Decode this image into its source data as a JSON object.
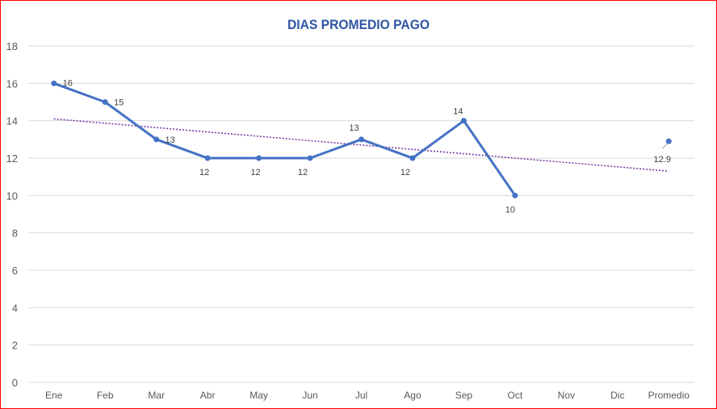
{
  "chart_data": {
    "type": "line",
    "title": "DIAS PROMEDIO PAGO",
    "xlabel": "",
    "ylabel": "",
    "categories": [
      "Ene",
      "Feb",
      "Mar",
      "Abr",
      "May",
      "Jun",
      "Jul",
      "Ago",
      "Sep",
      "Oct",
      "Nov",
      "Dic",
      "Promedio"
    ],
    "series": [
      {
        "values": [
          16,
          15,
          13,
          12,
          12,
          12,
          13,
          12,
          14,
          10,
          null,
          null,
          null
        ],
        "labels": [
          "16",
          "15",
          "13",
          "12",
          "12",
          "12",
          "13",
          "12",
          "14",
          "10",
          "",
          "",
          ""
        ]
      },
      {
        "values": [
          null,
          null,
          null,
          null,
          null,
          null,
          null,
          null,
          null,
          null,
          null,
          null,
          12.9
        ],
        "labels": [
          "",
          "",
          "",
          "",
          "",
          "",
          "",
          "",
          "",
          "",
          "",
          "",
          "12.9"
        ]
      }
    ],
    "trendline": {
      "type": "linear",
      "start": 14.1,
      "end": 11.3
    },
    "ylim": [
      0,
      18
    ],
    "yticks": [
      0,
      2,
      4,
      6,
      8,
      10,
      12,
      14,
      16,
      18
    ],
    "grid": true,
    "legend": "none",
    "colors": {
      "line": "#4472c4",
      "trend": "#7030a0",
      "title": "#2f55a4",
      "grid": "#d9d9d9",
      "border": "#ff0000"
    }
  }
}
